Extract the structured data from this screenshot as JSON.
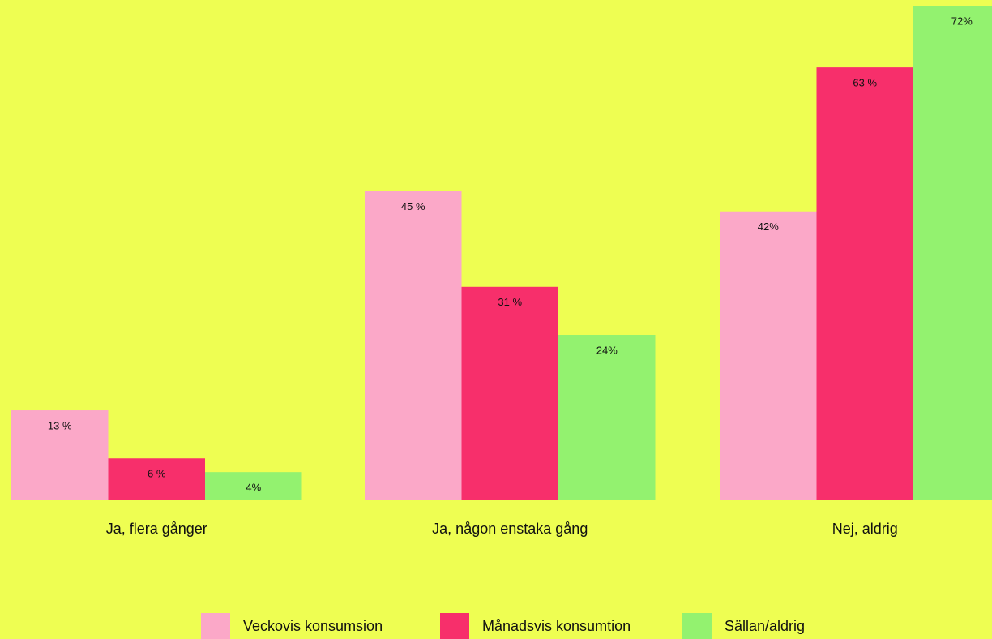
{
  "chart_data": {
    "type": "bar",
    "categories": [
      "Ja, flera gånger",
      "Ja, någon enstaka gång",
      "Nej, aldrig"
    ],
    "series": [
      {
        "name": "Veckovis konsumsion",
        "color": "#fba8c8",
        "values": [
          13,
          45,
          42
        ],
        "value_labels": [
          "13 %",
          "45 %",
          "42%"
        ]
      },
      {
        "name": "Månadsvis konsumtion",
        "color": "#f72f6b",
        "values": [
          6,
          31,
          63
        ],
        "value_labels": [
          "6 %",
          "31 %",
          "63 %"
        ]
      },
      {
        "name": "Sällan/aldrig",
        "color": "#93f26f",
        "values": [
          4,
          24,
          72
        ],
        "value_labels": [
          "4%",
          "24%",
          "72%"
        ]
      }
    ]
  }
}
